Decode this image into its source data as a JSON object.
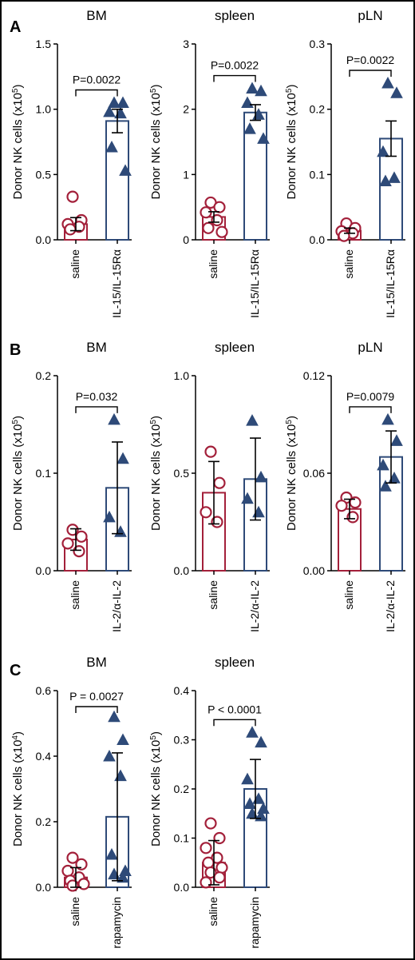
{
  "panels": [
    {
      "letter": "A"
    },
    {
      "letter": "B"
    },
    {
      "letter": "C"
    }
  ],
  "colors": {
    "saline": "#a3203a",
    "treated": "#2e4a78",
    "axis": "#000000",
    "frame": "#000000"
  },
  "chart_data": [
    {
      "type": "bar",
      "panel": "A",
      "title": "BM",
      "ylabel": "Donor NK cells (x10",
      "ylabel_exp": "5",
      "ylabel_close": ")",
      "ylim": [
        0,
        1.5
      ],
      "ticks": [
        "0.0",
        "0.5",
        "1.0",
        "1.5"
      ],
      "tick_values": [
        0,
        0.5,
        1.0,
        1.5
      ],
      "categories": [
        "saline",
        "IL-15/IL-15Rα"
      ],
      "bars": [
        {
          "mean": 0.12,
          "err": 0.05,
          "points": [
            0.33,
            0.15,
            0.12,
            0.1,
            0.08
          ]
        },
        {
          "mean": 0.91,
          "err": 0.09,
          "points": [
            1.05,
            1.05,
            0.98,
            0.97,
            0.71,
            0.53
          ]
        }
      ],
      "pvalue": "P=0.0022"
    },
    {
      "type": "bar",
      "panel": "A",
      "title": "spleen",
      "ylabel": "Donor NK cells (x10",
      "ylabel_exp": "5",
      "ylabel_close": ")",
      "ylim": [
        0,
        3
      ],
      "ticks": [
        "0",
        "1",
        "2",
        "3"
      ],
      "tick_values": [
        0,
        1,
        2,
        3
      ],
      "categories": [
        "saline",
        "IL-15/IL-15Rα"
      ],
      "bars": [
        {
          "mean": 0.35,
          "err": 0.08,
          "points": [
            0.57,
            0.5,
            0.42,
            0.3,
            0.18,
            0.12
          ]
        },
        {
          "mean": 1.95,
          "err": 0.12,
          "points": [
            2.32,
            2.28,
            2.1,
            1.92,
            1.7,
            1.55
          ]
        }
      ],
      "pvalue": "P=0.0022"
    },
    {
      "type": "bar",
      "panel": "A",
      "title": "pLN",
      "ylabel": "Donor NK cells (x10",
      "ylabel_exp": "5",
      "ylabel_close": ")",
      "ylim": [
        0,
        0.3
      ],
      "ticks": [
        "0.0",
        "0.1",
        "0.2",
        "0.3"
      ],
      "tick_values": [
        0,
        0.1,
        0.2,
        0.3
      ],
      "categories": [
        "saline",
        "IL-15/IL-15Rα"
      ],
      "bars": [
        {
          "mean": 0.014,
          "err": 0.004,
          "points": [
            0.025,
            0.018,
            0.013,
            0.01,
            0.006
          ]
        },
        {
          "mean": 0.155,
          "err": 0.027,
          "points": [
            0.24,
            0.225,
            0.135,
            0.095,
            0.09
          ]
        }
      ],
      "pvalue": "P=0.0022"
    },
    {
      "type": "bar",
      "panel": "B",
      "title": "BM",
      "ylabel": "Donor NK cells (x10",
      "ylabel_exp": "5",
      "ylabel_close": ")",
      "ylim": [
        0,
        0.2
      ],
      "ticks": [
        "0.0",
        "0.1",
        "0.2"
      ],
      "tick_values": [
        0,
        0.1,
        0.2
      ],
      "categories": [
        "saline",
        "IL-2/α-IL-2"
      ],
      "bars": [
        {
          "mean": 0.032,
          "err": 0.011,
          "points": [
            0.042,
            0.035,
            0.028,
            0.02
          ]
        },
        {
          "mean": 0.085,
          "err": 0.047,
          "points": [
            0.155,
            0.115,
            0.055,
            0.04
          ]
        }
      ],
      "pvalue": "P=0.032"
    },
    {
      "type": "bar",
      "panel": "B",
      "title": "spleen",
      "ylabel": "Donor NK cells (x10",
      "ylabel_exp": "5",
      "ylabel_close": ")",
      "ylim": [
        0,
        1.0
      ],
      "ticks": [
        "0.0",
        "0.5",
        "1.0"
      ],
      "tick_values": [
        0,
        0.5,
        1.0
      ],
      "categories": [
        "saline",
        "IL-2/α-IL-2"
      ],
      "bars": [
        {
          "mean": 0.4,
          "err": 0.16,
          "points": [
            0.61,
            0.45,
            0.3,
            0.25
          ]
        },
        {
          "mean": 0.47,
          "err": 0.21,
          "points": [
            0.77,
            0.48,
            0.37,
            0.3
          ]
        }
      ],
      "pvalue": ""
    },
    {
      "type": "bar",
      "panel": "B",
      "title": "pLN",
      "ylabel": "Donor NK cells (x10",
      "ylabel_exp": "5",
      "ylabel_close": ")",
      "ylim": [
        0,
        0.12
      ],
      "ticks": [
        "0.00",
        "0.06",
        "0.12"
      ],
      "tick_values": [
        0,
        0.06,
        0.12
      ],
      "categories": [
        "saline",
        "IL-2/α-IL-2"
      ],
      "bars": [
        {
          "mean": 0.038,
          "err": 0.006,
          "points": [
            0.045,
            0.042,
            0.04,
            0.033
          ]
        },
        {
          "mean": 0.07,
          "err": 0.016,
          "points": [
            0.093,
            0.08,
            0.065,
            0.057,
            0.052
          ]
        }
      ],
      "pvalue": "P=0.0079"
    },
    {
      "type": "bar",
      "panel": "C",
      "title": "BM",
      "ylabel": "Donor NK cells (x10",
      "ylabel_exp": "4",
      "ylabel_close": ")",
      "ylim": [
        0,
        0.6
      ],
      "ticks": [
        "0.0",
        "0.2",
        "0.4",
        "0.6"
      ],
      "tick_values": [
        0,
        0.2,
        0.4,
        0.6
      ],
      "categories": [
        "saline",
        "rapamycin"
      ],
      "bars": [
        {
          "mean": 0.03,
          "err": 0.03,
          "points": [
            0.09,
            0.07,
            0.05,
            0.03,
            0.02,
            0.01,
            0.005
          ]
        },
        {
          "mean": 0.215,
          "err": 0.195,
          "points": [
            0.52,
            0.45,
            0.4,
            0.34,
            0.1,
            0.05,
            0.04,
            0.03
          ]
        }
      ],
      "pvalue": "P = 0.0027"
    },
    {
      "type": "bar",
      "panel": "C",
      "title": "spleen",
      "ylabel": "Donor NK cells (x10",
      "ylabel_exp": "5",
      "ylabel_close": ")",
      "ylim": [
        0,
        0.4
      ],
      "ticks": [
        "0.0",
        "0.1",
        "0.2",
        "0.3",
        "0.4"
      ],
      "tick_values": [
        0,
        0.1,
        0.2,
        0.3,
        0.4
      ],
      "categories": [
        "saline",
        "rapamycin"
      ],
      "bars": [
        {
          "mean": 0.05,
          "err": 0.045,
          "points": [
            0.13,
            0.1,
            0.08,
            0.06,
            0.05,
            0.04,
            0.03,
            0.02,
            0.01
          ]
        },
        {
          "mean": 0.2,
          "err": 0.06,
          "points": [
            0.315,
            0.295,
            0.22,
            0.18,
            0.17,
            0.16,
            0.15,
            0.145
          ]
        }
      ],
      "pvalue": "P < 0.0001"
    }
  ]
}
